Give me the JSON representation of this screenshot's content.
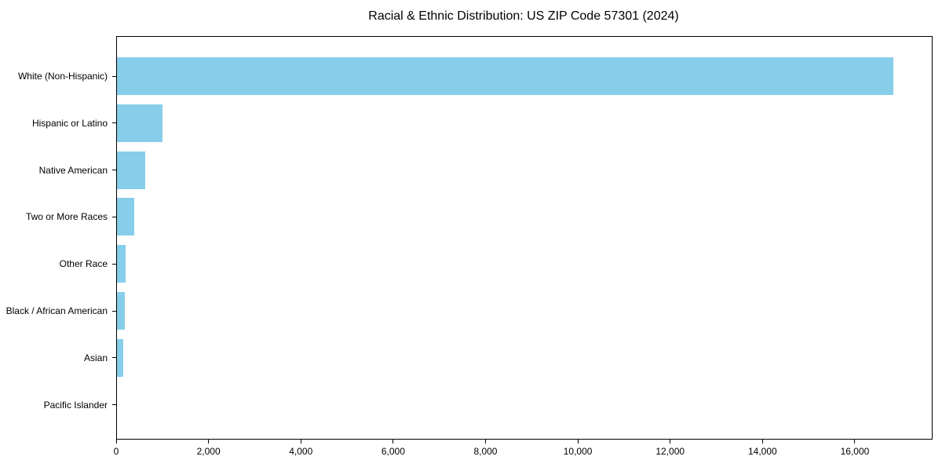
{
  "chart_data": {
    "type": "bar",
    "orientation": "horizontal",
    "title": "Racial & Ethnic Distribution: US ZIP Code 57301 (2024)",
    "categories": [
      "White (Non-Hispanic)",
      "Hispanic or Latino",
      "Native American",
      "Two or More Races",
      "Other Race",
      "Black / African American",
      "Asian",
      "Pacific Islander"
    ],
    "values": [
      16810,
      990,
      620,
      380,
      180,
      170,
      140,
      0
    ],
    "bar_color": "#87CEEB",
    "xlabel": "",
    "ylabel": "",
    "xlim": [
      0,
      17650
    ],
    "x_ticks": [
      0,
      2000,
      4000,
      6000,
      8000,
      10000,
      12000,
      14000,
      16000
    ],
    "x_tick_labels": [
      "0",
      "2,000",
      "4,000",
      "6,000",
      "8,000",
      "10,000",
      "12,000",
      "14,000",
      "16,000"
    ],
    "grid": false,
    "legend_position": "none"
  }
}
